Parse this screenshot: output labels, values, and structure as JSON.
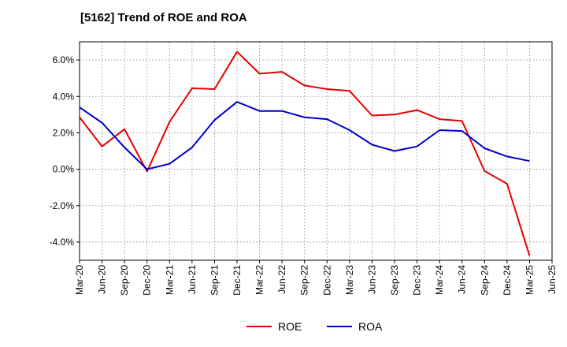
{
  "chart_data": {
    "type": "line",
    "title": "[5162]  Trend of ROE and ROA",
    "xlabel": "",
    "ylabel": "",
    "categories": [
      "Mar-20",
      "Jun-20",
      "Sep-20",
      "Dec-20",
      "Mar-21",
      "Jun-21",
      "Sep-21",
      "Dec-21",
      "Mar-22",
      "Jun-22",
      "Sep-22",
      "Dec-22",
      "Mar-23",
      "Jun-23",
      "Sep-23",
      "Dec-23",
      "Mar-24",
      "Jun-24",
      "Sep-24",
      "Dec-24",
      "Mar-25",
      "Jun-25"
    ],
    "series": [
      {
        "name": "ROE",
        "color": "#e60000",
        "values": [
          2.85,
          1.25,
          2.2,
          -0.12,
          2.6,
          4.45,
          4.4,
          6.45,
          5.25,
          5.35,
          4.6,
          4.4,
          4.3,
          2.95,
          3.0,
          3.25,
          2.75,
          2.65,
          -0.1,
          -0.8,
          -4.75,
          null
        ]
      },
      {
        "name": "ROA",
        "color": "#0000cc",
        "values": [
          3.4,
          2.55,
          1.2,
          0.0,
          0.3,
          1.2,
          2.7,
          3.7,
          3.2,
          3.2,
          2.85,
          2.75,
          2.15,
          1.35,
          1.0,
          1.25,
          2.15,
          2.1,
          1.15,
          0.7,
          0.45,
          null
        ]
      }
    ],
    "ylim": [
      -5,
      7
    ],
    "yticks": [
      -4,
      -2,
      0,
      2,
      4,
      6
    ],
    "ytick_labels": [
      "-4.0%",
      "-2.0%",
      "0.0%",
      "2.0%",
      "4.0%",
      "6.0%"
    ],
    "grid": true,
    "legend_position": "bottom-center"
  }
}
